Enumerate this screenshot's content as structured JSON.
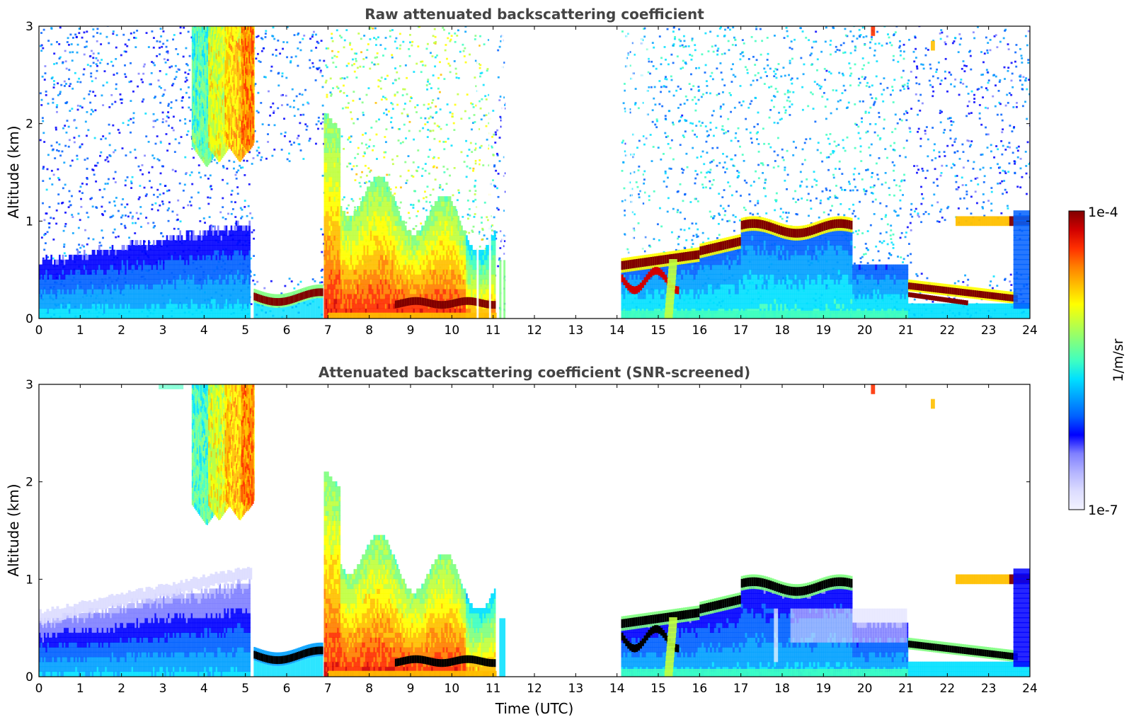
{
  "chart_data": [
    {
      "type": "heatmap",
      "title": "Raw attenuated backscattering coefficient",
      "ylabel": "Altitude (km)",
      "xlim": [
        0,
        24
      ],
      "ylim": [
        0,
        3
      ],
      "xticks": [
        0,
        1,
        2,
        3,
        4,
        5,
        6,
        7,
        8,
        9,
        10,
        11,
        12,
        13,
        14,
        15,
        16,
        17,
        18,
        19,
        20,
        21,
        22,
        23,
        24
      ],
      "yticks": [
        0,
        1,
        2,
        3
      ],
      "colorscale": "jet",
      "no_data_intervals": [
        [
          11.3,
          14.1
        ]
      ],
      "features": [
        {
          "name": "fall streaks",
          "x": [
            4.0,
            5.2
          ],
          "y": [
            1.6,
            3.0
          ],
          "level": "high"
        },
        {
          "name": "low cloud",
          "x": [
            5.2,
            6.8
          ],
          "y": [
            0.2,
            0.3
          ],
          "level": "max"
        },
        {
          "name": "boundary layer aerosol",
          "x": [
            7.0,
            11.0
          ],
          "y": [
            0.0,
            2.1
          ],
          "level": "high"
        },
        {
          "name": "cloud layer",
          "x": [
            14.1,
            19.7
          ],
          "y": [
            0.3,
            1.0
          ],
          "level": "max"
        },
        {
          "name": "low cloud",
          "x": [
            21.0,
            23.7
          ],
          "y": [
            0.15,
            0.4
          ],
          "level": "max"
        },
        {
          "name": "cloud",
          "x": [
            23.5,
            24.0
          ],
          "y": [
            0.9,
            1.1
          ],
          "level": "max"
        }
      ]
    },
    {
      "type": "heatmap",
      "title": "Attenuated backscattering coefficient (SNR-screened)",
      "ylabel": "Altitude (km)",
      "xlabel": "Time (UTC)",
      "xlim": [
        0,
        24
      ],
      "ylim": [
        0,
        3
      ],
      "xticks": [
        0,
        1,
        2,
        3,
        4,
        5,
        6,
        7,
        8,
        9,
        10,
        11,
        12,
        13,
        14,
        15,
        16,
        17,
        18,
        19,
        20,
        21,
        22,
        23,
        24
      ],
      "yticks": [
        0,
        1,
        2,
        3
      ],
      "colorscale": "jet",
      "no_data_intervals": [
        [
          11.3,
          14.1
        ]
      ],
      "features": [
        {
          "name": "fall streaks",
          "x": [
            4.0,
            5.2
          ],
          "y": [
            1.6,
            3.0
          ],
          "level": "high"
        },
        {
          "name": "boundary layer",
          "x": [
            0.0,
            5.1
          ],
          "y": [
            0.0,
            1.0
          ],
          "level": "low"
        },
        {
          "name": "low cloud",
          "x": [
            5.2,
            6.8
          ],
          "y": [
            0.2,
            0.3
          ],
          "level": "saturated"
        },
        {
          "name": "boundary layer aerosol",
          "x": [
            7.0,
            11.0
          ],
          "y": [
            0.0,
            2.15
          ],
          "level": "high"
        },
        {
          "name": "cloud layer",
          "x": [
            14.1,
            19.7
          ],
          "y": [
            0.3,
            1.0
          ],
          "level": "saturated"
        },
        {
          "name": "low cloud",
          "x": [
            21.0,
            23.7
          ],
          "y": [
            0.15,
            0.35
          ],
          "level": "saturated"
        }
      ]
    }
  ],
  "colorbar": {
    "label": "1/m/sr",
    "max_label": "1e-4",
    "min_label": "1e-7",
    "colors": [
      "#f2f2ff",
      "#dcdcff",
      "#b4b4ff",
      "#8080ff",
      "#0000ff",
      "#0060ff",
      "#00a0ff",
      "#00e0ff",
      "#40ffc0",
      "#80ff80",
      "#c0ff40",
      "#ffff00",
      "#ffc000",
      "#ff8000",
      "#ff3000",
      "#d00000",
      "#800000"
    ]
  }
}
